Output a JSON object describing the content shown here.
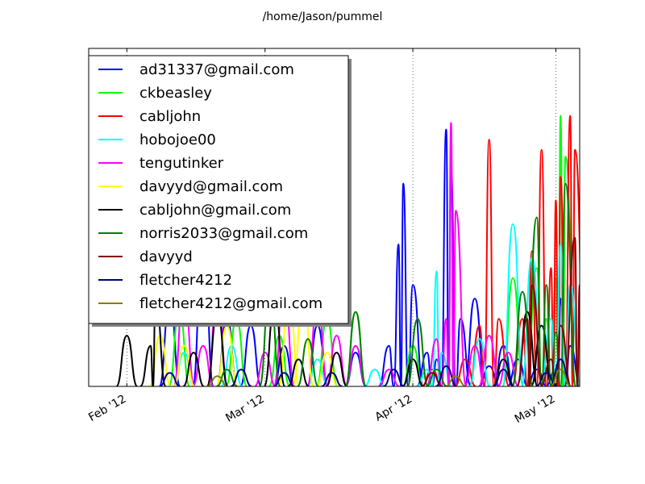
{
  "chart_data": {
    "type": "line",
    "title": "/home/Jason/pummel",
    "xlabel": "",
    "ylabel": "",
    "x_axis": "date",
    "xlim": [
      "2012-01-24",
      "2012-05-06"
    ],
    "ylim": [
      0,
      100
    ],
    "grid": "vertical dotted lines at month ticks",
    "legend": "upper left",
    "x_ticks": [
      {
        "date": "2012-02-01",
        "label": "Feb '12"
      },
      {
        "date": "2012-03-01",
        "label": "Mar '12"
      },
      {
        "date": "2012-04-01",
        "label": "Apr '12"
      },
      {
        "date": "2012-05-01",
        "label": "May '12"
      }
    ],
    "series": [
      {
        "name": "ad31337@gmail.com",
        "color": "#0000ff",
        "points": [
          [
            "2012-02-10",
            25
          ],
          [
            "2012-02-17",
            45
          ],
          [
            "2012-02-22",
            20
          ],
          [
            "2012-02-27",
            18
          ],
          [
            "2012-03-05",
            12
          ],
          [
            "2012-03-12",
            18
          ],
          [
            "2012-03-20",
            10
          ],
          [
            "2012-03-27",
            12
          ],
          [
            "2012-03-29",
            42
          ],
          [
            "2012-03-30",
            60
          ],
          [
            "2012-04-01",
            30
          ],
          [
            "2012-04-04",
            10
          ],
          [
            "2012-04-06",
            8
          ],
          [
            "2012-04-08",
            76
          ],
          [
            "2012-04-09",
            65
          ],
          [
            "2012-04-11",
            20
          ],
          [
            "2012-04-14",
            26
          ],
          [
            "2012-04-17",
            6
          ],
          [
            "2012-04-20",
            12
          ],
          [
            "2012-04-23",
            8
          ],
          [
            "2012-04-27",
            5
          ],
          [
            "2012-05-01",
            5
          ],
          [
            "2012-05-02",
            26
          ],
          [
            "2012-05-04",
            12
          ]
        ]
      },
      {
        "name": "ckbeasley",
        "color": "#00ff00",
        "points": [
          [
            "2012-02-12",
            22
          ],
          [
            "2012-02-24",
            20
          ],
          [
            "2012-03-04",
            15
          ],
          [
            "2012-03-14",
            20
          ],
          [
            "2012-03-20",
            22
          ],
          [
            "2012-04-01",
            12
          ],
          [
            "2012-04-22",
            32
          ],
          [
            "2012-04-27",
            35
          ],
          [
            "2012-04-29",
            20
          ],
          [
            "2012-05-01",
            32
          ],
          [
            "2012-05-02",
            80
          ],
          [
            "2012-05-03",
            68
          ]
        ]
      },
      {
        "name": "cabljohn",
        "color": "#ff0000",
        "points": [
          [
            "2012-04-05",
            5
          ],
          [
            "2012-04-12",
            8
          ],
          [
            "2012-04-15",
            18
          ],
          [
            "2012-04-17",
            73
          ],
          [
            "2012-04-19",
            20
          ],
          [
            "2012-04-24",
            20
          ],
          [
            "2012-04-26",
            40
          ],
          [
            "2012-04-28",
            70
          ],
          [
            "2012-04-30",
            35
          ],
          [
            "2012-05-01",
            55
          ],
          [
            "2012-05-02",
            62
          ],
          [
            "2012-05-04",
            80
          ],
          [
            "2012-05-05",
            70
          ]
        ]
      },
      {
        "name": "hobojoe00",
        "color": "#00ffff",
        "points": [
          [
            "2012-02-13",
            10
          ],
          [
            "2012-02-23",
            12
          ],
          [
            "2012-03-12",
            8
          ],
          [
            "2012-03-24",
            5
          ],
          [
            "2012-04-04",
            5
          ],
          [
            "2012-04-06",
            34
          ],
          [
            "2012-04-07",
            10
          ],
          [
            "2012-04-15",
            14
          ],
          [
            "2012-04-22",
            48
          ],
          [
            "2012-04-26",
            38
          ],
          [
            "2012-04-30",
            20
          ],
          [
            "2012-05-02",
            42
          ],
          [
            "2012-05-04",
            30
          ]
        ]
      },
      {
        "name": "tengutinker",
        "color": "#ff00ff",
        "points": [
          [
            "2012-02-13",
            28
          ],
          [
            "2012-02-17",
            12
          ],
          [
            "2012-02-20",
            26
          ],
          [
            "2012-03-01",
            10
          ],
          [
            "2012-03-05",
            28
          ],
          [
            "2012-03-12",
            24
          ],
          [
            "2012-03-16",
            15
          ],
          [
            "2012-03-20",
            12
          ],
          [
            "2012-03-27",
            5
          ],
          [
            "2012-04-06",
            14
          ],
          [
            "2012-04-08",
            20
          ],
          [
            "2012-04-09",
            78
          ],
          [
            "2012-04-10",
            52
          ],
          [
            "2012-04-14",
            12
          ],
          [
            "2012-04-17",
            15
          ],
          [
            "2012-04-21",
            10
          ]
        ]
      },
      {
        "name": "davyyd@gmail.com",
        "color": "#ffff00",
        "points": [
          [
            "2012-02-08",
            15
          ],
          [
            "2012-02-13",
            12
          ],
          [
            "2012-02-22",
            18
          ],
          [
            "2012-03-06",
            26
          ],
          [
            "2012-03-09",
            27
          ],
          [
            "2012-03-14",
            10
          ]
        ]
      },
      {
        "name": "cabljohn@gmail.com",
        "color": "#000000",
        "points": [
          [
            "2012-02-01",
            15
          ],
          [
            "2012-02-06",
            12
          ],
          [
            "2012-02-07",
            26
          ],
          [
            "2012-02-15",
            10
          ],
          [
            "2012-02-20",
            22
          ],
          [
            "2012-03-03",
            24
          ],
          [
            "2012-03-08",
            8
          ],
          [
            "2012-03-16",
            10
          ],
          [
            "2012-04-01",
            8
          ],
          [
            "2012-04-20",
            8
          ],
          [
            "2012-04-25",
            22
          ],
          [
            "2012-04-28",
            18
          ]
        ]
      },
      {
        "name": "norris2033@gmail.com",
        "color": "#008000",
        "points": [
          [
            "2012-02-22",
            5
          ],
          [
            "2012-03-02",
            28
          ],
          [
            "2012-03-10",
            14
          ],
          [
            "2012-03-20",
            22
          ],
          [
            "2012-04-02",
            20
          ],
          [
            "2012-04-06",
            5
          ],
          [
            "2012-04-24",
            28
          ],
          [
            "2012-04-27",
            50
          ],
          [
            "2012-04-29",
            30
          ],
          [
            "2012-05-01",
            16
          ],
          [
            "2012-05-03",
            60
          ]
        ]
      },
      {
        "name": "davyyd",
        "color": "#800000",
        "points": [
          [
            "2012-04-05",
            4
          ],
          [
            "2012-04-25",
            20
          ],
          [
            "2012-04-26",
            30
          ],
          [
            "2012-04-30",
            8
          ],
          [
            "2012-05-02",
            18
          ],
          [
            "2012-05-05",
            44
          ],
          [
            "2012-05-06",
            30
          ]
        ]
      },
      {
        "name": "fletcher4212",
        "color": "#000080",
        "points": [
          [
            "2012-02-10",
            4
          ],
          [
            "2012-02-25",
            5
          ],
          [
            "2012-03-05",
            4
          ],
          [
            "2012-03-15",
            4
          ],
          [
            "2012-03-28",
            5
          ],
          [
            "2012-04-08",
            6
          ],
          [
            "2012-04-20",
            5
          ],
          [
            "2012-04-29",
            4
          ],
          [
            "2012-05-02",
            8
          ]
        ]
      },
      {
        "name": "fletcher4212@gmail.com",
        "color": "#808000",
        "points": [
          [
            "2012-02-20",
            3
          ],
          [
            "2012-04-10",
            3
          ],
          [
            "2012-05-02",
            5
          ]
        ]
      }
    ]
  }
}
